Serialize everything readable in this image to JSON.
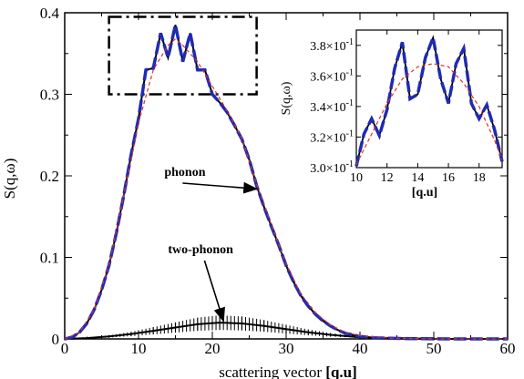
{
  "chart_data": [
    {
      "type": "line",
      "xlabel_prefix": "scattering vector ",
      "xlabel_bold": "[q.u]",
      "ylabel": "S(q,ω)",
      "xlim": [
        0,
        60
      ],
      "ylim": [
        0,
        0.4
      ],
      "x_ticks": [
        0,
        10,
        20,
        30,
        40,
        50,
        60
      ],
      "y_ticks": [
        0,
        0.1,
        0.2,
        0.3,
        0.4
      ],
      "y_tick_labels": [
        "0",
        "0.1",
        "0.2",
        "0.3",
        "0.4"
      ],
      "grid": false,
      "legend": "none",
      "colors": {
        "one_phonon_black": "#000000",
        "one_phonon_blue": "#1f2bb3",
        "fit": "#e03020",
        "two_phonon": "#000000"
      },
      "series": [
        {
          "role": "one-phonon (black solid, blue dashed overlay)",
          "x": [
            0,
            1,
            2,
            3,
            4,
            5,
            6,
            7,
            8,
            9,
            10,
            11,
            12,
            13,
            14,
            15,
            16,
            17,
            18,
            19,
            20,
            21,
            22,
            23,
            24,
            25,
            26,
            27,
            28,
            29,
            30,
            31,
            32,
            33,
            34,
            35,
            36,
            37,
            38,
            39,
            40,
            42,
            44,
            46,
            48,
            50,
            55,
            60
          ],
          "y": [
            0,
            0.002,
            0.008,
            0.019,
            0.036,
            0.06,
            0.09,
            0.13,
            0.176,
            0.226,
            0.27,
            0.33,
            0.332,
            0.375,
            0.345,
            0.385,
            0.34,
            0.375,
            0.33,
            0.33,
            0.3,
            0.29,
            0.278,
            0.262,
            0.245,
            0.22,
            0.188,
            0.162,
            0.138,
            0.115,
            0.09,
            0.07,
            0.053,
            0.04,
            0.03,
            0.022,
            0.016,
            0.011,
            0.007,
            0.005,
            0.003,
            0.0015,
            0.0008,
            0.0004,
            0.0002,
            0.0001,
            0,
            0
          ]
        },
        {
          "role": "smooth fit (red dashed)",
          "x": [
            0,
            2,
            4,
            6,
            8,
            10,
            12,
            14,
            15,
            16,
            18,
            20,
            22,
            24,
            26,
            28,
            30,
            32,
            34,
            36,
            38,
            40,
            44,
            50,
            60
          ],
          "y": [
            0,
            0.008,
            0.036,
            0.09,
            0.176,
            0.265,
            0.33,
            0.36,
            0.368,
            0.36,
            0.34,
            0.31,
            0.28,
            0.246,
            0.19,
            0.14,
            0.092,
            0.055,
            0.032,
            0.017,
            0.008,
            0.004,
            0.001,
            0,
            0
          ]
        },
        {
          "role": "two-phonon (black, error bars)",
          "x": [
            0,
            3,
            6,
            9,
            12,
            15,
            18,
            21,
            24,
            27,
            30,
            33,
            36,
            40,
            45,
            50,
            55,
            60
          ],
          "y": [
            0,
            0.001,
            0.003,
            0.006,
            0.01,
            0.014,
            0.018,
            0.02,
            0.019,
            0.016,
            0.012,
            0.008,
            0.005,
            0.002,
            0.001,
            0,
            0,
            0
          ]
        }
      ],
      "annotations": [
        {
          "text": "phonon",
          "at_x": 13.5,
          "at_y": 0.2,
          "arrow_to_x": 26,
          "arrow_to_y": 0.184
        },
        {
          "text": "two-phonon",
          "at_x": 14,
          "at_y": 0.105,
          "arrow_to_x": 21.5,
          "arrow_to_y": 0.022
        }
      ],
      "highlight_box": {
        "x_range": [
          6,
          26
        ],
        "y_range": [
          0.3,
          0.395
        ],
        "style": "dash-dot"
      }
    },
    {
      "type": "line",
      "role": "inset",
      "xlabel_bold": "[q.u]",
      "ylabel": "S(q,ω)",
      "xlim": [
        10,
        19.5
      ],
      "ylim": [
        0.3,
        0.39
      ],
      "x_ticks": [
        10,
        12,
        14,
        16,
        18
      ],
      "y_ticks": [
        0.3,
        0.32,
        0.34,
        0.36,
        0.38
      ],
      "y_tick_mantissas": [
        "3.0",
        "3.2",
        "3.4",
        "3.6",
        "3.8"
      ],
      "y_tick_times": "×10",
      "y_tick_exp": "-1",
      "series": [
        {
          "role": "one-phonon detail (black solid, blue dashed overlay)",
          "x": [
            10,
            10.5,
            11,
            11.5,
            12,
            12.5,
            13,
            13.5,
            14,
            14.5,
            15,
            15.5,
            16,
            16.5,
            17,
            17.5,
            18,
            18.5,
            19,
            19.5
          ],
          "y": [
            0.301,
            0.322,
            0.332,
            0.321,
            0.338,
            0.365,
            0.382,
            0.345,
            0.348,
            0.372,
            0.385,
            0.358,
            0.342,
            0.368,
            0.378,
            0.342,
            0.332,
            0.341,
            0.325,
            0.304
          ]
        },
        {
          "role": "smooth fit (red dashed)",
          "x": [
            10,
            11,
            12,
            13,
            14,
            15,
            16,
            17,
            18,
            19,
            19.5
          ],
          "y": [
            0.302,
            0.322,
            0.342,
            0.358,
            0.366,
            0.368,
            0.366,
            0.355,
            0.34,
            0.318,
            0.305
          ]
        }
      ]
    }
  ]
}
